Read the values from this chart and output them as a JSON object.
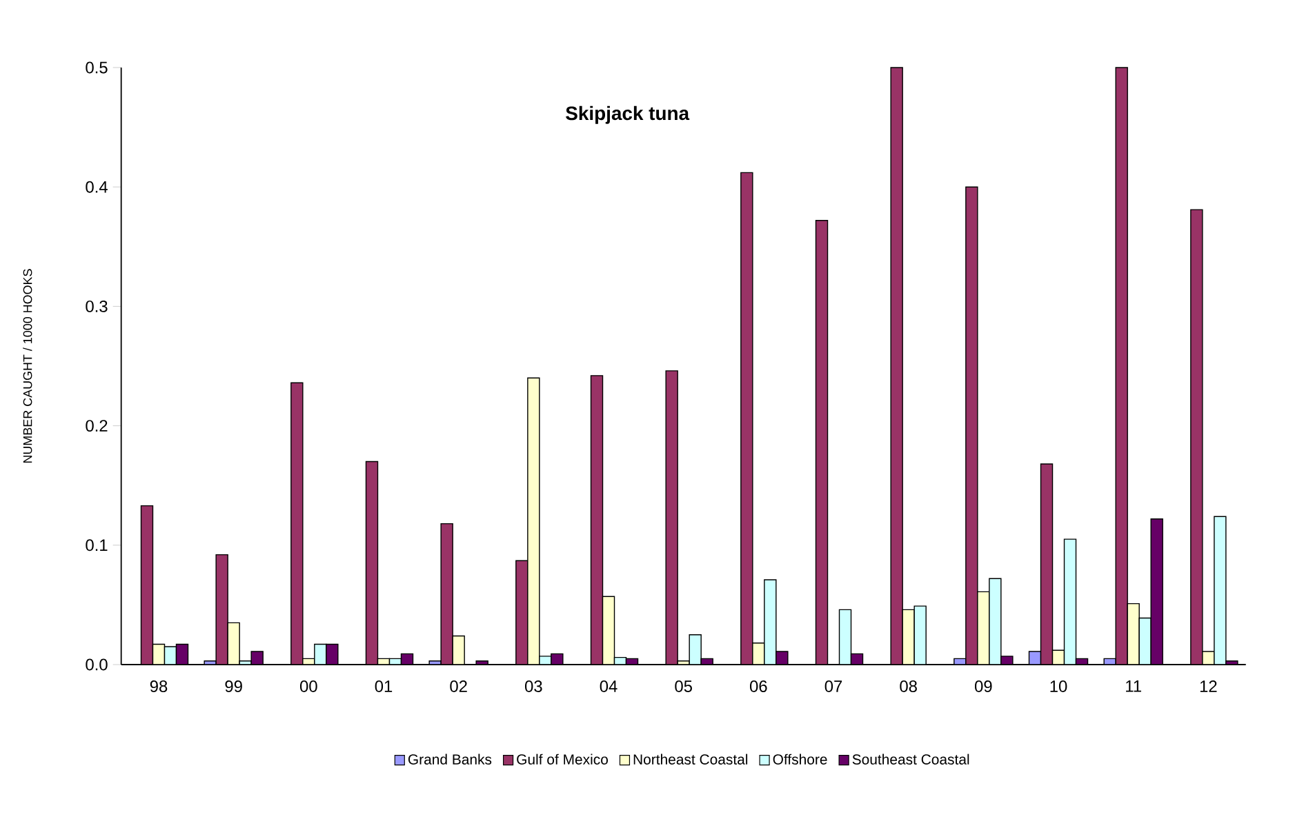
{
  "chart_data": {
    "type": "bar",
    "title": "Skipjack tuna",
    "ylabel": "NUMBER CAUGHT / 1000 HOOKS",
    "categories": [
      "98",
      "99",
      "00",
      "01",
      "02",
      "03",
      "04",
      "05",
      "06",
      "07",
      "08",
      "09",
      "10",
      "11",
      "12"
    ],
    "series": [
      {
        "name": "Grand Banks",
        "color": "#9999ff",
        "values": [
          null,
          0.003,
          null,
          null,
          0.003,
          null,
          null,
          null,
          null,
          null,
          null,
          0.005,
          0.011,
          0.005,
          null
        ]
      },
      {
        "name": "Gulf of Mexico",
        "color": "#993366",
        "values": [
          0.133,
          0.092,
          0.236,
          0.17,
          0.118,
          0.087,
          0.242,
          0.246,
          0.412,
          0.372,
          0.5,
          0.4,
          0.168,
          0.5,
          0.381
        ]
      },
      {
        "name": "Northeast Coastal",
        "color": "#ffffcc",
        "values": [
          0.017,
          0.035,
          0.005,
          0.005,
          0.024,
          0.24,
          0.057,
          0.003,
          0.018,
          null,
          0.046,
          0.061,
          0.012,
          0.051,
          0.011
        ]
      },
      {
        "name": "Offshore",
        "color": "#ccffff",
        "values": [
          0.015,
          0.003,
          0.017,
          0.005,
          null,
          0.007,
          0.006,
          0.025,
          0.071,
          0.046,
          0.049,
          0.072,
          0.105,
          0.039,
          0.124
        ]
      },
      {
        "name": "Southeast Coastal",
        "color": "#660066",
        "values": [
          0.017,
          0.011,
          0.017,
          0.009,
          0.003,
          0.009,
          0.005,
          0.005,
          0.011,
          0.009,
          null,
          0.007,
          0.005,
          0.122,
          0.003
        ]
      }
    ],
    "ylim": [
      0,
      0.5
    ],
    "yticks": [
      {
        "value": 0,
        "label": "0.0"
      },
      0.1,
      0.2,
      0.3,
      0.4,
      0.5
    ],
    "legend": "bottom"
  }
}
